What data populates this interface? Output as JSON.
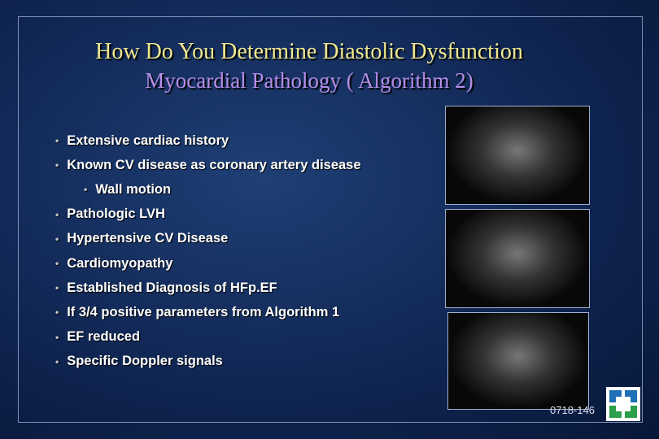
{
  "title": "How Do You Determine Diastolic Dysfunction",
  "subtitle": "Myocardial Pathology ( Algorithm 2)",
  "bullets": [
    {
      "text": "Extensive cardiac history",
      "level": 1
    },
    {
      "text": "Known CV disease as coronary artery disease",
      "level": 1
    },
    {
      "text": "Wall motion",
      "level": 2
    },
    {
      "text": "Pathologic LVH",
      "level": 1
    },
    {
      "text": "Hypertensive CV Disease",
      "level": 1
    },
    {
      "text": "Cardiomyopathy",
      "level": 1
    },
    {
      "text": "Established Diagnosis of HFp.EF",
      "level": 1
    },
    {
      "text": "If 3/4 positive parameters from Algorithm 1",
      "level": 1
    },
    {
      "text": "EF reduced",
      "level": 1
    },
    {
      "text": "Specific Doppler signals",
      "level": 1
    }
  ],
  "footer_code": "0718-146"
}
